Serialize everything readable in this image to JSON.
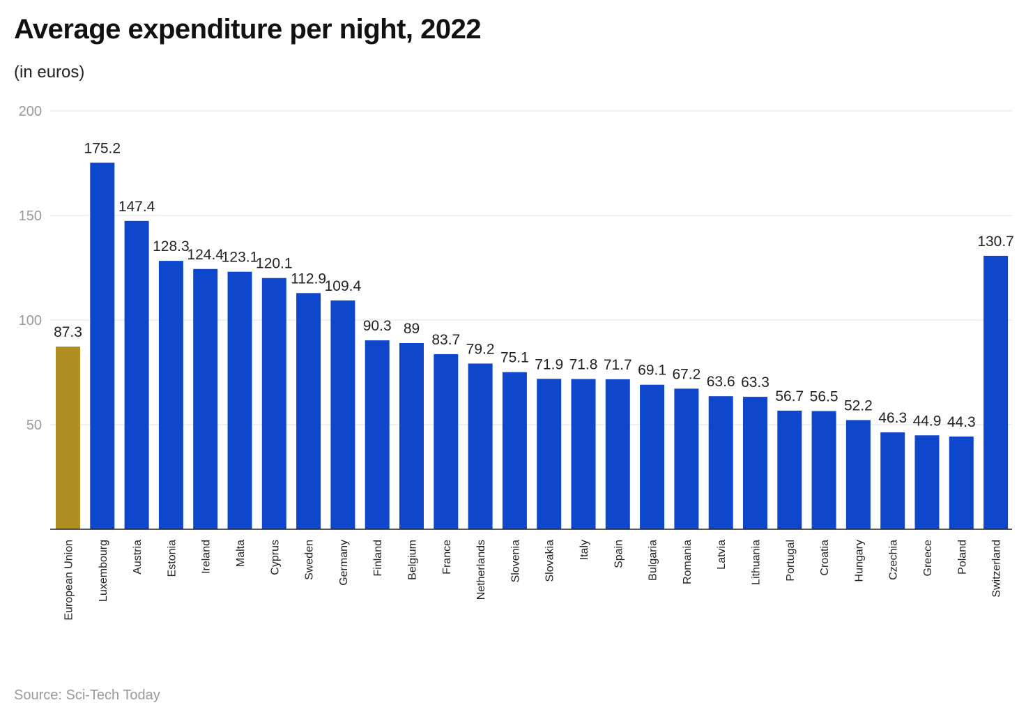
{
  "chart_data": {
    "type": "bar",
    "title": "Average expenditure per night, 2022",
    "subtitle": "(in euros)",
    "source": "Source: Sci-Tech Today",
    "ylim": [
      0,
      200
    ],
    "yticks": [
      50,
      100,
      150,
      200
    ],
    "grid": true,
    "categories": [
      "European Union",
      "Luxembourg",
      "Austria",
      "Estonia",
      "Ireland",
      "Malta",
      "Cyprus",
      "Sweden",
      "Germany",
      "Finland",
      "Belgium",
      "France",
      "Netherlands",
      "Slovenia",
      "Slovakia",
      "Italy",
      "Spain",
      "Bulgaria",
      "Romania",
      "Latvia",
      "Lithuania",
      "Portugal",
      "Croatia",
      "Hungary",
      "Czechia",
      "Greece",
      "Poland",
      "Switzerland"
    ],
    "values": [
      87.3,
      175.2,
      147.4,
      128.3,
      124.4,
      123.1,
      120.1,
      112.9,
      109.4,
      90.3,
      89,
      83.7,
      79.2,
      75.1,
      71.9,
      71.8,
      71.7,
      69.1,
      67.2,
      63.6,
      63.3,
      56.7,
      56.5,
      52.2,
      46.3,
      44.9,
      44.3,
      130.7
    ],
    "value_labels": [
      "87.3",
      "175.2",
      "147.4",
      "128.3",
      "124.4",
      "123.1",
      "120.1",
      "112.9",
      "109.4",
      "90.3",
      "89",
      "83.7",
      "79.2",
      "75.1",
      "71.9",
      "71.8",
      "71.7",
      "69.1",
      "67.2",
      "63.6",
      "63.3",
      "56.7",
      "56.5",
      "52.2",
      "46.3",
      "44.9",
      "44.3",
      "130.7"
    ],
    "colors": {
      "highlight": "#b08f22",
      "bar": "#0f47cc",
      "grid": "#e2e2e2",
      "axis": "#222222"
    },
    "highlight_index": 0
  }
}
